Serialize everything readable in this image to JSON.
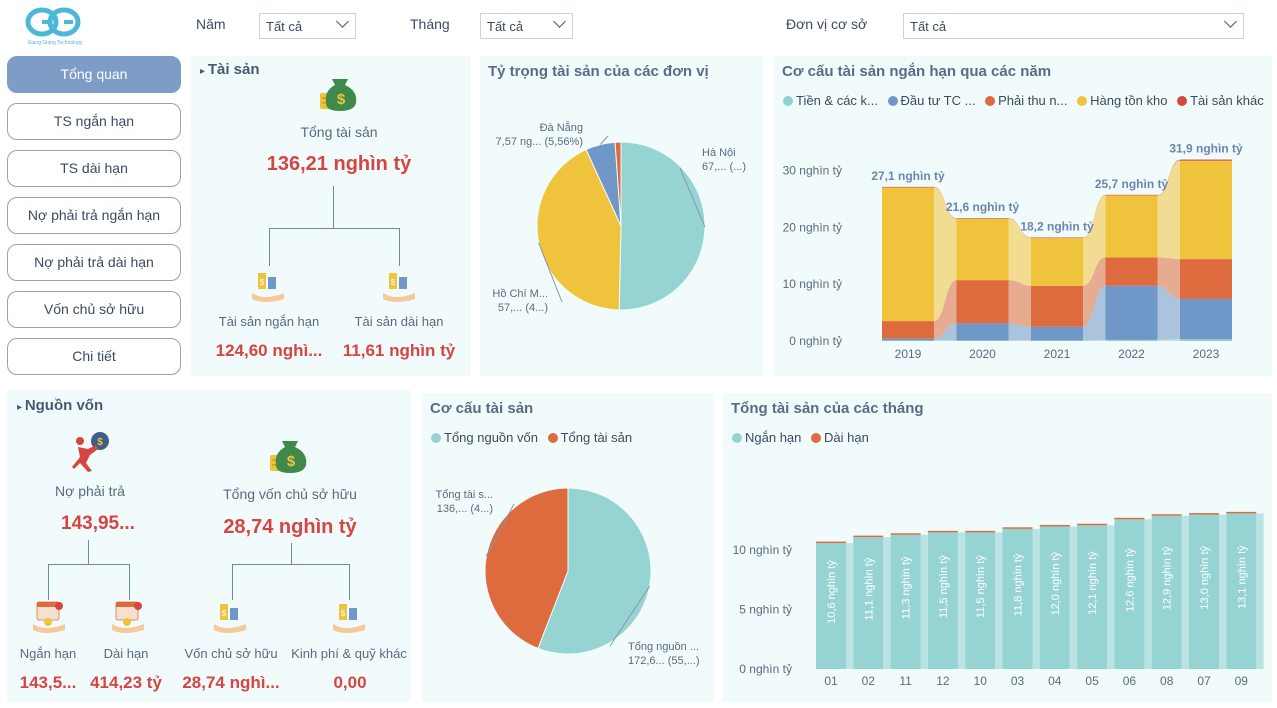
{
  "logo": {
    "brand": "Giang Giang Technology"
  },
  "filters": {
    "year_label": "Năm",
    "year_value": "Tất cả",
    "month_label": "Tháng",
    "month_value": "Tất cả",
    "unit_label": "Đơn vị cơ sở",
    "unit_value": "Tất cả"
  },
  "nav": [
    "Tổng quan",
    "TS ngắn hạn",
    "TS dài hạn",
    "Nợ phải trả ngắn hạn",
    "Nợ phải trả dài hạn",
    "Vốn chủ sở hữu",
    "Chi tiết"
  ],
  "assets": {
    "title": "Tài sản",
    "total_label": "Tổng tài sản",
    "total_value": "136,21 nghìn tỷ",
    "short_label": "Tài sản ngắn hạn",
    "short_value": "124,60 nghì...",
    "long_label": "Tài sản dài hạn",
    "long_value": "11,61 nghìn tỷ"
  },
  "sources": {
    "title": "Nguồn vốn",
    "debt_label": "Nợ phải trả",
    "debt_value": "143,95...",
    "equity_label": "Tổng vốn chủ sở hữu",
    "equity_value": "28,74 nghìn tỷ",
    "debt_short_label": "Ngắn hạn",
    "debt_short_value": "143,5...",
    "debt_long_label": "Dài hạn",
    "debt_long_value": "414,23 tỷ",
    "owner_label": "Vốn chủ sở hữu",
    "owner_value": "28,74 nghì...",
    "fund_label": "Kinh phí & quỹ khác",
    "fund_value": "0,00"
  },
  "colors": {
    "teal": "#96d4d4",
    "yellow": "#f0c33c",
    "blue": "#6f97c7",
    "orange": "#dd6b3d",
    "red": "#d64541",
    "cash": "#8fd3d0"
  },
  "chart_data": [
    {
      "type": "pie",
      "title": "Tỷ trọng tài sản của các đơn vị",
      "slices": [
        {
          "name": "Hà Nội",
          "value": 67,
          "label": "Hà Nội",
          "sublabel": "67,... (...)",
          "color": "#96d4d4"
        },
        {
          "name": "Hồ Chí Minh",
          "value": 57,
          "label": "Hồ Chí M...",
          "sublabel": "57,... (4...)",
          "color": "#f0c33c"
        },
        {
          "name": "Đà Nẵng",
          "value": 7.57,
          "label": "Đà Nẵng",
          "sublabel": "7,57 ng... (5,56%)",
          "color": "#6f97c7"
        },
        {
          "name": "Khác",
          "value": 1.5,
          "label": "",
          "sublabel": "",
          "color": "#dd6b3d"
        }
      ]
    },
    {
      "type": "bar",
      "stacked": true,
      "title": "Cơ cấu tài sản ngắn hạn qua các năm",
      "legend": [
        "Tiền & các k...",
        "Đầu tư TC ...",
        "Phải thu n...",
        "Hàng tồn kho",
        "Tài sản khác"
      ],
      "legend_colors": [
        "#8fd3d0",
        "#6f97c7",
        "#dd6b3d",
        "#f0c33c",
        "#d64541"
      ],
      "categories": [
        "2019",
        "2020",
        "2021",
        "2022",
        "2023"
      ],
      "series": [
        {
          "name": "Tiền & các k...",
          "values": [
            0.1,
            0.1,
            0.1,
            0.2,
            0.3
          ]
        },
        {
          "name": "Đầu tư TC ...",
          "values": [
            0.3,
            3.0,
            2.4,
            9.5,
            7.1
          ]
        },
        {
          "name": "Phải thu n...",
          "values": [
            3.1,
            7.6,
            7.2,
            5.0,
            7.0
          ]
        },
        {
          "name": "Hàng tồn kho",
          "values": [
            23.5,
            10.8,
            8.4,
            10.9,
            17.3
          ]
        },
        {
          "name": "Tài sản khác",
          "values": [
            0.1,
            0.1,
            0.1,
            0.1,
            0.2
          ]
        }
      ],
      "totals": [
        "27,1 nghìn tỷ",
        "21,6 nghìn tỷ",
        "18,2 nghìn tỷ",
        "25,7 nghìn tỷ",
        "31,9 nghìn tỷ"
      ],
      "total_values": [
        27.1,
        21.6,
        18.2,
        25.7,
        31.9
      ],
      "yticks": [
        {
          "v": 0,
          "t": "0 nghìn tỷ"
        },
        {
          "v": 10,
          "t": "10 nghìn tỷ"
        },
        {
          "v": 20,
          "t": "20 nghìn tỷ"
        },
        {
          "v": 30,
          "t": "30 nghìn tỷ"
        }
      ],
      "ylim": [
        0,
        32
      ]
    },
    {
      "type": "pie",
      "title": "Cơ cấu tài sản",
      "legend": [
        "Tổng nguồn vốn",
        "Tổng tài sản"
      ],
      "slices": [
        {
          "name": "Tổng nguồn vốn",
          "value": 172.6,
          "label": "Tổng nguồn ...",
          "sublabel": "172,6... (55,...)",
          "color": "#96d4d4"
        },
        {
          "name": "Tổng tài sản",
          "value": 136.21,
          "label": "Tổng tài s...",
          "sublabel": "136,... (4...)",
          "color": "#dd6b3d"
        }
      ]
    },
    {
      "type": "bar",
      "title": "Tổng tài sản của các tháng",
      "legend": [
        "Ngắn hạn",
        "Dài hạn"
      ],
      "categories": [
        "01",
        "02",
        "11",
        "12",
        "10",
        "03",
        "04",
        "05",
        "06",
        "08",
        "07",
        "09"
      ],
      "series": [
        {
          "name": "Ngắn hạn",
          "values": [
            10.6,
            11.1,
            11.3,
            11.5,
            11.5,
            11.8,
            12.0,
            12.1,
            12.6,
            12.9,
            13.0,
            13.1
          ]
        },
        {
          "name": "Dài hạn",
          "values": [
            0.05,
            0.05,
            0.05,
            0.05,
            0.05,
            0.05,
            0.05,
            0.05,
            0.05,
            0.05,
            0.05,
            0.05
          ]
        }
      ],
      "labels": [
        "10,6 nghìn tỷ",
        "11,1 nghìn tỷ",
        "11,3 nghìn tỷ",
        "11,5 nghìn tỷ",
        "11,5 nghìn tỷ",
        "11,8 nghìn tỷ",
        "12,0 nghìn tỷ",
        "12,1 nghìn tỷ",
        "12,6 nghìn tỷ",
        "12,9 nghìn tỷ",
        "13,0 nghìn tỷ",
        "13,1 nghìn tỷ"
      ],
      "yticks": [
        {
          "v": 0,
          "t": "0 nghìn tỷ"
        },
        {
          "v": 5,
          "t": "5 nghìn tỷ"
        },
        {
          "v": 10,
          "t": "10 nghìn tỷ"
        }
      ],
      "ylim": [
        0,
        13.3
      ]
    }
  ]
}
